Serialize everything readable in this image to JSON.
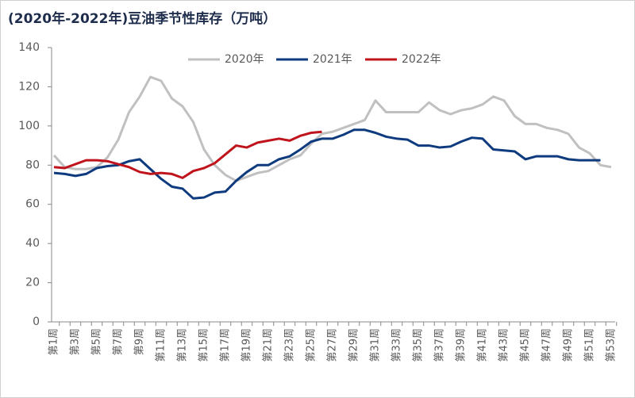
{
  "chart_data": {
    "type": "line",
    "title": "(2020年-2022年)豆油季节性库存（万吨）",
    "categories": [
      "第1周",
      null,
      "第3周",
      null,
      "第5周",
      null,
      "第7周",
      null,
      "第9周",
      null,
      "第11周",
      null,
      "第13周",
      null,
      "第15周",
      null,
      "第17周",
      null,
      "第19周",
      null,
      "第21周",
      null,
      "第23周",
      null,
      "第25周",
      null,
      "第27周",
      null,
      "第29周",
      null,
      "第31周",
      null,
      "第33周",
      null,
      "第35周",
      null,
      "第37周",
      null,
      "第39周",
      null,
      "第41周",
      null,
      "第43周",
      null,
      "第45周",
      null,
      "第47周",
      null,
      "第49周",
      null,
      "第51周",
      null,
      "第53周"
    ],
    "series": [
      {
        "name": "2020年",
        "color": "#c0c0c0",
        "values": [
          85,
          79,
          78,
          78,
          79,
          84,
          93,
          107,
          115,
          125,
          123,
          114,
          110,
          102,
          88,
          80,
          75,
          72,
          74,
          76,
          77,
          80,
          83,
          85,
          91,
          96,
          97,
          99,
          101,
          103,
          113,
          107,
          107,
          107,
          107,
          112,
          108,
          106,
          108,
          109,
          111,
          115,
          113,
          105,
          101,
          101,
          99,
          98,
          96,
          89,
          86,
          80,
          79
        ]
      },
      {
        "name": "2021年",
        "color": "#0e3a7e",
        "values": [
          76,
          75.5,
          74.5,
          75.5,
          78.5,
          79.5,
          80,
          82,
          83,
          78,
          73,
          69,
          68,
          63,
          63.5,
          66,
          66.5,
          72,
          76.5,
          80,
          80,
          83,
          84.5,
          88,
          92,
          93.5,
          93.5,
          95.5,
          98,
          98,
          96.5,
          94.5,
          93.5,
          93,
          90,
          90,
          89,
          89.5,
          92,
          94,
          93.5,
          88,
          87.5,
          87,
          83,
          84.5,
          84.5,
          84.5,
          83,
          82.5,
          82.5,
          82.5,
          null
        ]
      },
      {
        "name": "2022年",
        "color": "#c0141c",
        "values": [
          79,
          78.5,
          80.5,
          82.5,
          82.5,
          82,
          80.5,
          79,
          76.5,
          75.5,
          76,
          75.5,
          73.5,
          77,
          78.5,
          81,
          85.5,
          90,
          89,
          91.5,
          92.5,
          93.5,
          92.5,
          95,
          96.5,
          97,
          null,
          null,
          null,
          null,
          null,
          null,
          null,
          null,
          null,
          null,
          null,
          null,
          null,
          null,
          null,
          null,
          null,
          null,
          null,
          null,
          null,
          null,
          null,
          null,
          null,
          null,
          null
        ]
      }
    ],
    "ylim": [
      0,
      140
    ],
    "yticks": [
      0,
      20,
      40,
      60,
      80,
      100,
      120,
      140
    ]
  }
}
